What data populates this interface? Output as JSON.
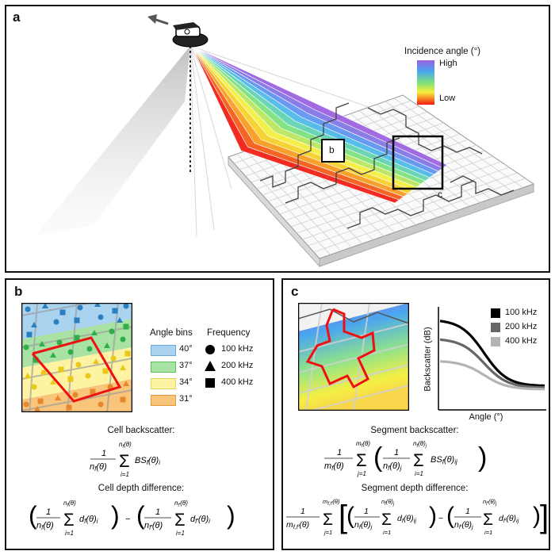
{
  "panel_a": {
    "label": "a",
    "legend_title": "Incidence angle (°)",
    "legend_high": "High",
    "legend_low": "Low",
    "box_b": "b",
    "box_c": "c"
  },
  "panel_b": {
    "label": "b",
    "angle_bins_title": "Angle bins",
    "angle_bins": [
      "40°",
      "37°",
      "34°",
      "31°"
    ],
    "frequency_title": "Frequency",
    "frequencies": [
      "100 kHz",
      "200 kHz",
      "400 kHz"
    ],
    "cell_backscatter_label": "Cell backscatter:",
    "cell_depth_label": "Cell depth difference:"
  },
  "panel_c": {
    "label": "c",
    "legend": [
      "100 kHz",
      "200 kHz",
      "400 kHz"
    ],
    "ylabel": "Backscatter (dB)",
    "xlabel": "Angle (°)",
    "segment_backscatter_label": "Segment backscatter:",
    "segment_depth_label": "Segment depth difference:"
  },
  "colors": {
    "angle_bin_colors": [
      "#a9d3ee",
      "#a8e3a4",
      "#fdf3a2",
      "#f8c57a"
    ],
    "curve_colors": [
      "#000000",
      "#666666",
      "#b4b4b4"
    ]
  }
}
